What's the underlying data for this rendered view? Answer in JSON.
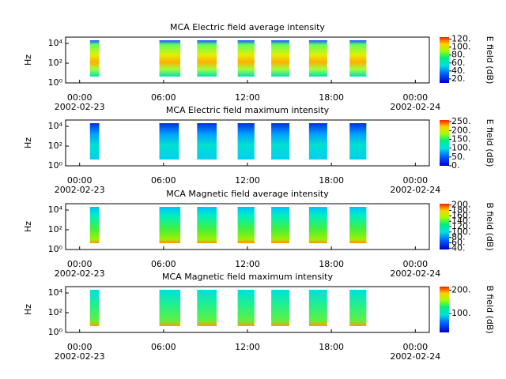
{
  "chart_data": [
    {
      "type": "spectrogram",
      "title": "MCA  Electric field average intensity",
      "ylabel": "Hz",
      "xlim": [
        -1,
        25
      ],
      "xticks": [
        {
          "value": 0,
          "label": "00:00",
          "date": "2002-02-23"
        },
        {
          "value": 6,
          "label": "06:00"
        },
        {
          "value": 12,
          "label": "12:00"
        },
        {
          "value": 18,
          "label": "18:00"
        },
        {
          "value": 24,
          "label": "00:00",
          "date": "2002-02-24"
        }
      ],
      "ylog": true,
      "ylim": [
        1,
        44000
      ],
      "yticks": [
        {
          "value": 1,
          "label": "10⁰"
        },
        {
          "value": 100,
          "label": "10²"
        },
        {
          "value": 10000,
          "label": "10⁴"
        }
      ],
      "segments": [
        [
          0.74,
          1.4
        ],
        [
          5.7,
          7.2
        ],
        [
          8.4,
          9.8
        ],
        [
          11.3,
          12.5
        ],
        [
          13.7,
          15.0
        ],
        [
          16.4,
          17.7
        ],
        [
          19.3,
          20.5
        ]
      ],
      "colorbar": {
        "label": "E field (dB)",
        "colormap": "rainbow",
        "lim": [
          10,
          125
        ],
        "ticks": [
          {
            "value": 20,
            "label": "20."
          },
          {
            "value": 40,
            "label": "40."
          },
          {
            "value": 60,
            "label": "60."
          },
          {
            "value": 80,
            "label": "80."
          },
          {
            "value": 100,
            "label": "100."
          },
          {
            "value": 120,
            "label": "120."
          }
        ]
      }
    },
    {
      "type": "spectrogram",
      "title": "MCA  Electric field maximum intensity",
      "ylabel": "Hz",
      "xlim": [
        -1,
        25
      ],
      "xticks": [
        {
          "value": 0,
          "label": "00:00",
          "date": "2002-02-23"
        },
        {
          "value": 6,
          "label": "06:00"
        },
        {
          "value": 12,
          "label": "12:00"
        },
        {
          "value": 18,
          "label": "18:00"
        },
        {
          "value": 24,
          "label": "00:00",
          "date": "2002-02-24"
        }
      ],
      "ylog": true,
      "ylim": [
        1,
        44000
      ],
      "yticks": [
        {
          "value": 1,
          "label": "10⁰"
        },
        {
          "value": 100,
          "label": "10²"
        },
        {
          "value": 10000,
          "label": "10⁴"
        }
      ],
      "segments": [
        [
          0.74,
          1.4
        ],
        [
          5.7,
          7.1
        ],
        [
          8.4,
          9.8
        ],
        [
          11.3,
          12.5
        ],
        [
          13.7,
          15.0
        ],
        [
          16.4,
          17.7
        ],
        [
          19.3,
          20.5
        ]
      ],
      "colorbar": {
        "label": "E field (dB)",
        "colormap": "rainbow",
        "lim": [
          0,
          260
        ],
        "ticks": [
          {
            "value": 0,
            "label": "0."
          },
          {
            "value": 50,
            "label": "50."
          },
          {
            "value": 100,
            "label": "100."
          },
          {
            "value": 150,
            "label": "150."
          },
          {
            "value": 200,
            "label": "200."
          },
          {
            "value": 250,
            "label": "250."
          }
        ]
      }
    },
    {
      "type": "spectrogram",
      "title": "MCA  Magnetic field average intensity",
      "ylabel": "Hz",
      "xlim": [
        -1,
        25
      ],
      "xticks": [
        {
          "value": 0,
          "label": "00:00",
          "date": "2002-02-23"
        },
        {
          "value": 6,
          "label": "06:00"
        },
        {
          "value": 12,
          "label": "12:00"
        },
        {
          "value": 18,
          "label": "18:00"
        },
        {
          "value": 24,
          "label": "00:00",
          "date": "2002-02-24"
        }
      ],
      "ylog": true,
      "ylim": [
        1,
        44000
      ],
      "yticks": [
        {
          "value": 1,
          "label": "10⁰"
        },
        {
          "value": 100,
          "label": "10²"
        },
        {
          "value": 10000,
          "label": "10⁴"
        }
      ],
      "segments": [
        [
          0.74,
          1.4
        ],
        [
          5.7,
          7.2
        ],
        [
          8.4,
          9.8
        ],
        [
          11.3,
          12.5
        ],
        [
          13.7,
          15.0
        ],
        [
          16.4,
          17.7
        ],
        [
          19.3,
          20.5
        ]
      ],
      "colorbar": {
        "label": "B field (dB)",
        "colormap": "rainbow",
        "lim": [
          35,
          205
        ],
        "ticks": [
          {
            "value": 40,
            "label": "40."
          },
          {
            "value": 60,
            "label": "60."
          },
          {
            "value": 80,
            "label": "80."
          },
          {
            "value": 100,
            "label": "100."
          },
          {
            "value": 120,
            "label": "120."
          },
          {
            "value": 140,
            "label": "140."
          },
          {
            "value": 160,
            "label": "160."
          },
          {
            "value": 180,
            "label": "180."
          },
          {
            "value": 200,
            "label": "200."
          }
        ]
      }
    },
    {
      "type": "spectrogram",
      "title": "MCA  Magnetic field maximum intensity",
      "ylabel": "Hz",
      "xlim": [
        -1,
        25
      ],
      "xticks": [
        {
          "value": 0,
          "label": "00:00",
          "date": "2002-02-23"
        },
        {
          "value": 6,
          "label": "06:00"
        },
        {
          "value": 12,
          "label": "12:00"
        },
        {
          "value": 18,
          "label": "18:00"
        },
        {
          "value": 24,
          "label": "00:00",
          "date": "2002-02-24"
        }
      ],
      "ylog": true,
      "ylim": [
        1,
        44000
      ],
      "yticks": [
        {
          "value": 1,
          "label": "10⁰"
        },
        {
          "value": 100,
          "label": "10²"
        },
        {
          "value": 10000,
          "label": "10⁴"
        }
      ],
      "segments": [
        [
          0.74,
          1.4
        ],
        [
          5.7,
          7.2
        ],
        [
          8.4,
          9.8
        ],
        [
          11.3,
          12.5
        ],
        [
          13.7,
          15.0
        ],
        [
          16.4,
          17.7
        ],
        [
          19.3,
          20.5
        ]
      ],
      "colorbar": {
        "label": "B field (dB)",
        "colormap": "rainbow",
        "lim": [
          20,
          215
        ],
        "ticks": [
          {
            "value": 100,
            "label": "100."
          },
          {
            "value": 200,
            "label": "200."
          }
        ]
      }
    }
  ]
}
